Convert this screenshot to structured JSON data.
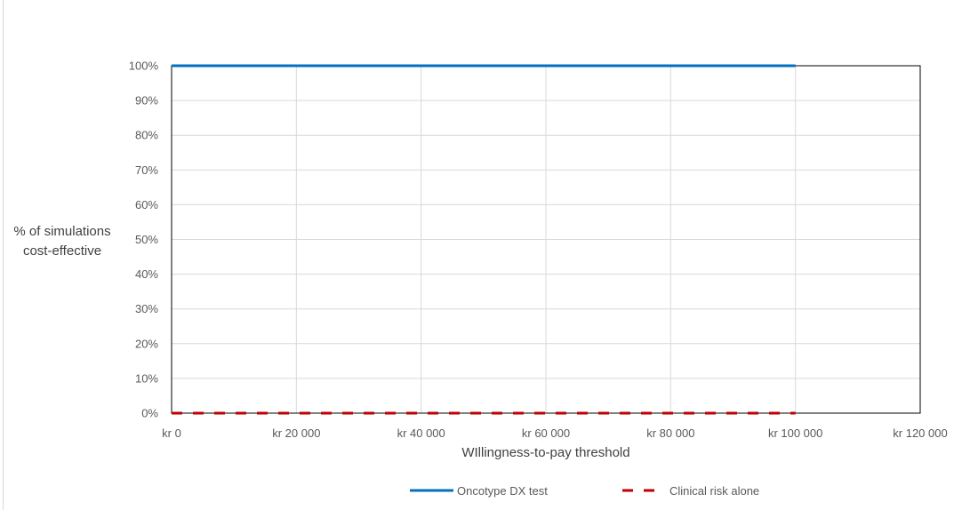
{
  "chart_data": {
    "type": "line",
    "title": "",
    "xlabel": "WIllingness-to-pay threshold",
    "ylabel_lines": [
      "% of simulations",
      "cost-effective"
    ],
    "x_ticks": [
      0,
      20000,
      40000,
      60000,
      80000,
      100000,
      120000
    ],
    "x_tick_labels": [
      "kr 0",
      "kr 20 000",
      "kr 40 000",
      "kr 60 000",
      "kr 80 000",
      "kr 100 000",
      "kr 120 000"
    ],
    "y_ticks": [
      0,
      10,
      20,
      30,
      40,
      50,
      60,
      70,
      80,
      90,
      100
    ],
    "y_tick_labels": [
      "0%",
      "10%",
      "20%",
      "30%",
      "40%",
      "50%",
      "60%",
      "70%",
      "80%",
      "90%",
      "100%"
    ],
    "xlim": [
      0,
      120000
    ],
    "ylim": [
      0,
      100
    ],
    "grid": true,
    "legend_position": "bottom-center",
    "x": [
      0,
      100000
    ],
    "series": [
      {
        "name": "Oncotype DX test",
        "values": [
          100,
          100
        ],
        "color": "#0070c0",
        "style": "solid"
      },
      {
        "name": "Clinical risk alone",
        "values": [
          0,
          0
        ],
        "color": "#c00000",
        "style": "dashed"
      }
    ]
  }
}
